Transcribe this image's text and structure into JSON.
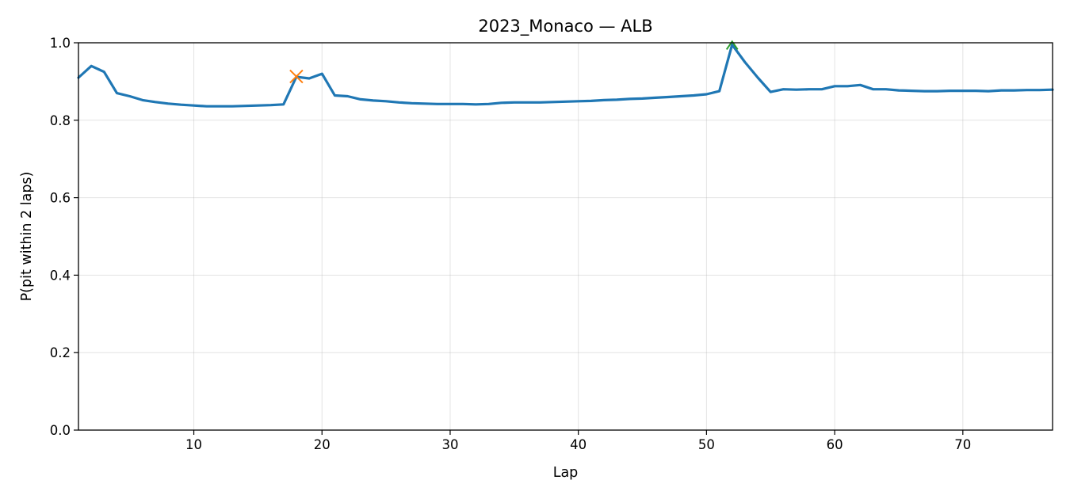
{
  "chart_data": {
    "type": "line",
    "title": "2023_Monaco — ALB",
    "xlabel": "Lap",
    "ylabel": "P(pit within 2 laps)",
    "xlim": [
      1,
      77
    ],
    "ylim": [
      0.0,
      1.0
    ],
    "grid": true,
    "xticks": [
      10,
      20,
      30,
      40,
      50,
      60,
      70
    ],
    "yticks": [
      0.0,
      0.2,
      0.4,
      0.6,
      0.8,
      1.0
    ],
    "colors": {
      "line": "#1f77b4",
      "pit_marker": "#ff7f0e",
      "event_marker": "#2ca02c",
      "grid": "#b0b0b0"
    },
    "series": [
      {
        "x": [
          1,
          2,
          3,
          4,
          5,
          6,
          7,
          8,
          9,
          10,
          11,
          12,
          13,
          14,
          15,
          16,
          17,
          18,
          19,
          20,
          21,
          22,
          23,
          24,
          25,
          26,
          27,
          28,
          29,
          30,
          31,
          32,
          33,
          34,
          35,
          36,
          37,
          38,
          39,
          40,
          41,
          42,
          43,
          44,
          45,
          46,
          47,
          48,
          49,
          50,
          51,
          52,
          53,
          54,
          55,
          56,
          57,
          58,
          59,
          60,
          61,
          62,
          63,
          64,
          65,
          66,
          67,
          68,
          69,
          70,
          71,
          72,
          73,
          74,
          75,
          76,
          77
        ],
        "y": [
          0.91,
          0.94,
          0.925,
          0.87,
          0.862,
          0.852,
          0.847,
          0.843,
          0.84,
          0.838,
          0.836,
          0.836,
          0.836,
          0.837,
          0.838,
          0.839,
          0.841,
          0.912,
          0.908,
          0.92,
          0.864,
          0.862,
          0.854,
          0.851,
          0.849,
          0.846,
          0.844,
          0.843,
          0.842,
          0.842,
          0.842,
          0.841,
          0.842,
          0.845,
          0.846,
          0.846,
          0.846,
          0.847,
          0.848,
          0.849,
          0.85,
          0.852,
          0.853,
          0.855,
          0.856,
          0.858,
          0.86,
          0.862,
          0.864,
          0.867,
          0.875,
          0.995,
          0.95,
          0.91,
          0.873,
          0.88,
          0.879,
          0.88,
          0.88,
          0.888,
          0.888,
          0.891,
          0.88,
          0.88,
          0.877,
          0.876,
          0.875,
          0.875,
          0.876,
          0.876,
          0.876,
          0.875,
          0.877,
          0.877,
          0.878,
          0.878,
          0.879
        ]
      }
    ],
    "markers": [
      {
        "kind": "x",
        "x": 18,
        "y": 0.913,
        "color": "#ff7f0e"
      },
      {
        "kind": "up-triangle",
        "x": 52,
        "y": 0.993,
        "color": "#2ca02c"
      }
    ]
  }
}
